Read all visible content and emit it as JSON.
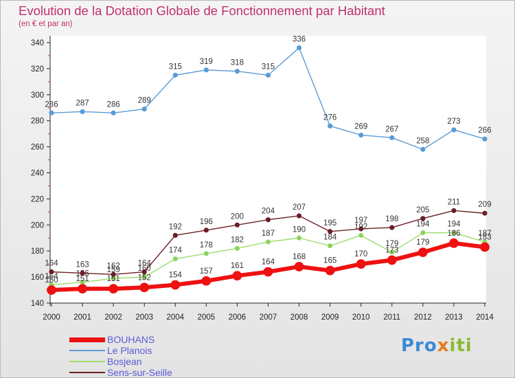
{
  "header": {
    "title": "Evolution de la Dotation Globale de Fonctionnement par Habitant",
    "subtitle": "(en € et par an)"
  },
  "logo": {
    "text": "Proxiti",
    "colors": [
      "#3a8ad4",
      "#e37b1d",
      "#8bbb33"
    ]
  },
  "chart_data": {
    "type": "line",
    "x": [
      "2000",
      "2001",
      "2002",
      "2003",
      "2004",
      "2005",
      "2006",
      "2007",
      "2008",
      "2009",
      "2010",
      "2011",
      "2012",
      "2013",
      "2014"
    ],
    "ylim": [
      140,
      340
    ],
    "yticks": [
      140,
      160,
      180,
      200,
      220,
      240,
      260,
      280,
      300,
      320,
      340
    ],
    "grid": false,
    "legend_position": "bottom-left",
    "series": [
      {
        "name": "Le Planois",
        "color": "#5b9bd5",
        "values": [
          286,
          287,
          286,
          289,
          315,
          319,
          318,
          315,
          336,
          276,
          269,
          267,
          258,
          273,
          266
        ]
      },
      {
        "name": "Bosjean",
        "color": "#9bdc6b",
        "values": [
          154,
          156,
          159,
          160,
          174,
          178,
          182,
          187,
          190,
          184,
          192,
          179,
          194,
          194,
          187
        ]
      },
      {
        "name": "Sens-sur-Seille",
        "color": "#6b1f26",
        "values": [
          164,
          163,
          162,
          164,
          192,
          196,
          200,
          204,
          207,
          195,
          197,
          198,
          205,
          211,
          209
        ]
      },
      {
        "name": "BOUHANS",
        "color": "#ee1111",
        "values": [
          150,
          151,
          151,
          152,
          154,
          157,
          161,
          164,
          168,
          165,
          170,
          173,
          179,
          186,
          183
        ]
      }
    ],
    "point_labels": [
      [
        "286",
        "287",
        "286",
        "289",
        "315",
        "319",
        "318",
        "315",
        "336",
        "276",
        "269",
        "267",
        "258",
        "273",
        "266"
      ],
      [
        "154",
        "156",
        "159",
        "160",
        "174",
        "178",
        "182",
        "187",
        "190",
        "184",
        "192",
        "179",
        "194",
        "194",
        "187"
      ],
      [
        "164",
        "163",
        "162",
        "164",
        "192",
        "196",
        "200",
        "204",
        "207",
        "195",
        "197",
        "198",
        "205",
        "211",
        "209"
      ],
      [
        "150",
        "151",
        "151",
        "152",
        "154",
        "157",
        "161",
        "164",
        "168",
        "165",
        "170",
        "173",
        "179",
        "186",
        "183"
      ]
    ],
    "legend_order": [
      "BOUHANS",
      "Le Planois",
      "Bosjean",
      "Sens-sur-Seille"
    ]
  }
}
